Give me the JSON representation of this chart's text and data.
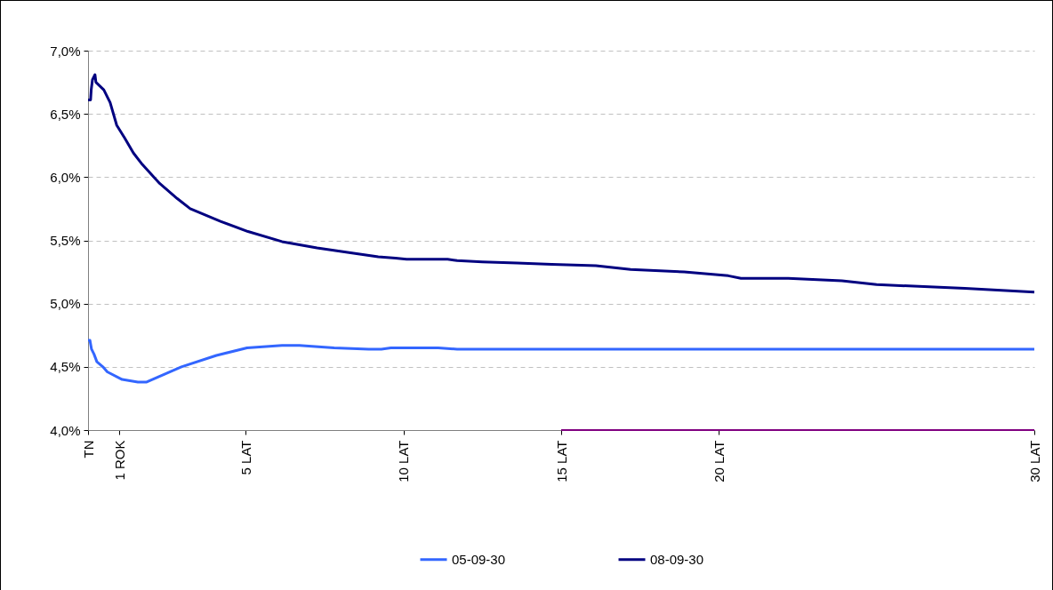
{
  "chart_data": {
    "type": "line",
    "xlim": [
      0,
      30
    ],
    "xticks": [
      {
        "value": 0,
        "label": "TN"
      },
      {
        "value": 1,
        "label": "1 ROK"
      },
      {
        "value": 5,
        "label": "5 LAT"
      },
      {
        "value": 10,
        "label": "10 LAT"
      },
      {
        "value": 15,
        "label": "15 LAT"
      },
      {
        "value": 20,
        "label": "20 LAT"
      },
      {
        "value": 30,
        "label": "30 LAT"
      }
    ],
    "ylim": [
      4.0,
      7.0
    ],
    "yticks": [
      {
        "value": 4.0,
        "label": "4,0%"
      },
      {
        "value": 4.5,
        "label": "4,5%"
      },
      {
        "value": 5.0,
        "label": "5,0%"
      },
      {
        "value": 5.5,
        "label": "5,5%"
      },
      {
        "value": 6.0,
        "label": "6,0%"
      },
      {
        "value": 6.5,
        "label": "6,5%"
      },
      {
        "value": 7.0,
        "label": "7,0%"
      }
    ],
    "grid": "y",
    "legend": "bottom",
    "marker": "none",
    "series": [
      {
        "name": "05-09-30",
        "color": "#3366ff",
        "x": [
          0,
          0.06,
          0.11,
          0.19,
          0.28,
          0.47,
          0.61,
          1.08,
          1.58,
          1.86,
          2.41,
          2.96,
          4.07,
          5.04,
          6.15,
          6.7,
          7.8,
          8.9,
          9.3,
          9.6,
          11.1,
          11.7,
          30
        ],
        "values": [
          4.71,
          4.71,
          4.64,
          4.6,
          4.54,
          4.5,
          4.46,
          4.4,
          4.38,
          4.38,
          4.44,
          4.5,
          4.59,
          4.65,
          4.67,
          4.67,
          4.65,
          4.64,
          4.64,
          4.65,
          4.65,
          4.64,
          4.64
        ]
      },
      {
        "name": "08-09-30",
        "color": "#000080",
        "x": [
          0,
          0.08,
          0.1,
          0.14,
          0.22,
          0.25,
          0.5,
          0.7,
          0.91,
          1.16,
          1.44,
          1.72,
          2.27,
          2.83,
          3.24,
          4.2,
          5.07,
          6.15,
          7.26,
          8.37,
          9.2,
          9.75,
          10.1,
          11.4,
          11.7,
          12.5,
          13.6,
          14.7,
          16.1,
          17.2,
          18.9,
          20.3,
          20.7,
          22.2,
          23.9,
          25.0,
          27.8,
          30
        ],
        "values": [
          6.61,
          6.61,
          6.69,
          6.77,
          6.81,
          6.75,
          6.69,
          6.59,
          6.41,
          6.31,
          6.19,
          6.1,
          5.95,
          5.83,
          5.75,
          5.65,
          5.57,
          5.49,
          5.44,
          5.4,
          5.37,
          5.36,
          5.35,
          5.35,
          5.34,
          5.33,
          5.32,
          5.31,
          5.3,
          5.27,
          5.25,
          5.22,
          5.2,
          5.2,
          5.18,
          5.15,
          5.12,
          5.09
        ]
      },
      {
        "color": "#800080",
        "x": [
          15,
          30
        ],
        "values": [
          4.0,
          4.0
        ]
      }
    ]
  }
}
